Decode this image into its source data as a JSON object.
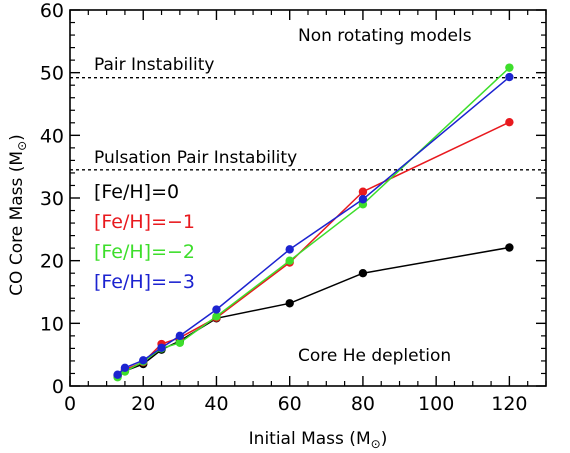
{
  "chart_data": {
    "type": "line",
    "xlabel": "Initial Mass",
    "xlabel_unit": "M",
    "ylabel": "CO Core Mass",
    "ylabel_unit": "M",
    "unit_symbol": "⊙",
    "xlim": [
      0,
      130
    ],
    "ylim": [
      0,
      60
    ],
    "xticks": [
      0,
      20,
      40,
      60,
      80,
      100,
      120
    ],
    "yticks": [
      0,
      10,
      20,
      30,
      40,
      50,
      60
    ],
    "grid": false,
    "legend_position": "left",
    "series": [
      {
        "name": "[Fe/H]=0",
        "color": "#000000",
        "x": [
          13,
          15,
          20,
          25,
          30,
          40,
          60,
          80,
          120
        ],
        "y": [
          1.6,
          2.4,
          3.5,
          5.8,
          7.2,
          10.8,
          13.2,
          18.0,
          22.1
        ]
      },
      {
        "name": "[Fe/H]=−1",
        "color": "#e8191e",
        "x": [
          13,
          15,
          20,
          25,
          30,
          40,
          60,
          80,
          120
        ],
        "y": [
          1.7,
          2.6,
          3.8,
          6.7,
          7.7,
          10.9,
          19.7,
          31.0,
          42.1
        ]
      },
      {
        "name": "[Fe/H]=−2",
        "color": "#3dde2b",
        "x": [
          13,
          15,
          20,
          25,
          30,
          40,
          60,
          80,
          120
        ],
        "y": [
          1.4,
          2.3,
          3.9,
          6.0,
          6.9,
          11.1,
          20.0,
          29.0,
          50.8
        ]
      },
      {
        "name": "[Fe/H]=−3",
        "color": "#1c23d0",
        "x": [
          13,
          15,
          20,
          25,
          30,
          40,
          60,
          80,
          120
        ],
        "y": [
          1.8,
          2.9,
          4.1,
          6.1,
          8.0,
          12.2,
          21.8,
          29.8,
          49.3
        ]
      }
    ],
    "reference_lines": [
      {
        "label": "Pair Instability",
        "y": 49.2
      },
      {
        "label": "Pulsation Pair Instability",
        "y": 34.5
      }
    ],
    "annotations": {
      "top_right": "Non rotating models",
      "bottom_right": "Core He depletion"
    }
  }
}
